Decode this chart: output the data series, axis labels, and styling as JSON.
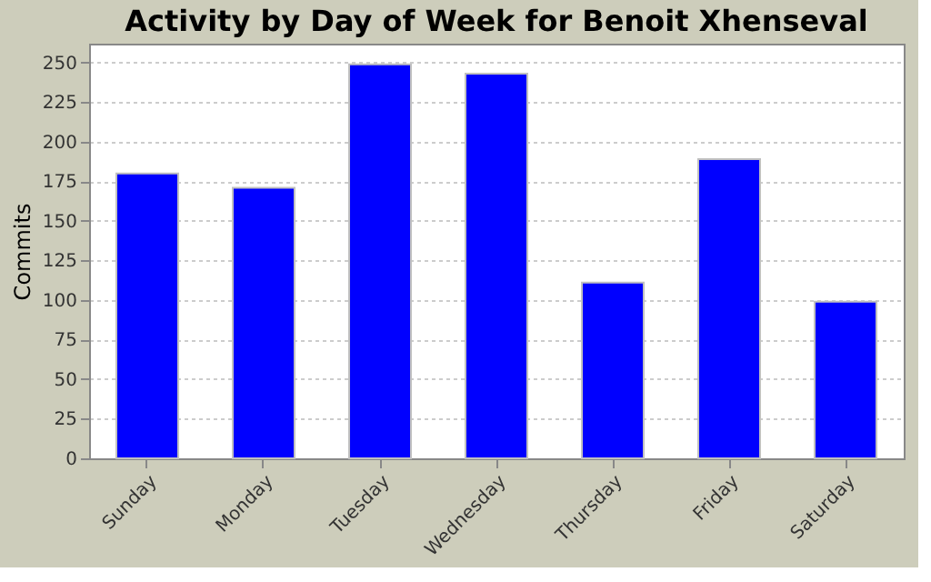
{
  "chart_data": {
    "type": "bar",
    "title": "Activity by Day of Week for Benoit Xhenseval",
    "ylabel": "Commits",
    "categories": [
      "Sunday",
      "Monday",
      "Tuesday",
      "Wednesday",
      "Thursday",
      "Friday",
      "Saturday"
    ],
    "values": [
      180,
      171,
      249,
      243,
      111,
      189,
      99
    ],
    "color": "#0000ff",
    "ylim": [
      0,
      262
    ],
    "yticks": [
      0,
      25,
      50,
      75,
      100,
      125,
      150,
      175,
      200,
      225,
      250
    ],
    "grid": "y"
  }
}
